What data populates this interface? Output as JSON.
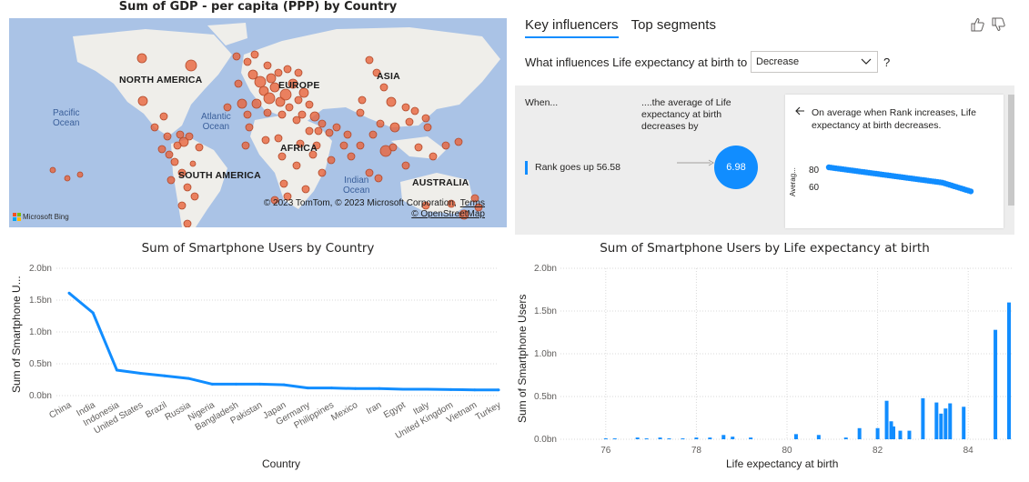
{
  "map": {
    "title": "Sum of GDP - per capita (PPP) by Country",
    "continents": [
      "NORTH AMERICA",
      "EUROPE",
      "ASIA",
      "AFRICA",
      "SOUTH AMERICA",
      "AUSTRALIA"
    ],
    "oceans": [
      "Pacific\nOcean",
      "Atlantic\nOcean",
      "Indian\nOcean"
    ],
    "copyright": "© 2023 TomTom, © 2023 Microsoft Corporation,",
    "terms": "Terms",
    "osm": "© OpenStreetMap",
    "bing": "Microsoft Bing",
    "bubble_color": "#e8643c",
    "ocean_color": "#aac3e6",
    "land_color": "#efeeea"
  },
  "key_influencers": {
    "tabs": [
      "Key influencers",
      "Top segments"
    ],
    "active_tab": 0,
    "question": "What influences Life expectancy at birth to",
    "dropdown_value": "Decrease",
    "qmark": "?",
    "when_label": "When...",
    "avg_heading": "....the average of Life expectancy at birth decreases by",
    "factor_label": "Rank goes up 56.58",
    "bubble_value": "6.98",
    "detail_text": "On average when Rank increases, Life expectancy at birth decreases.",
    "mini_chart_ylabel": "Averag...",
    "mini_chart_ticks": [
      "80",
      "60"
    ],
    "accent": "#118dff",
    "icons": [
      "thumbs-up-icon",
      "thumbs-down-icon",
      "back-arrow-icon",
      "chevron-down-icon"
    ]
  },
  "line_chart": {
    "title": "Sum of Smartphone Users by Country",
    "ylabel": "Sum of Smartphone U...",
    "xlabel": "Country",
    "y_ticks": [
      "2.0bn",
      "1.5bn",
      "1.0bn",
      "0.5bn",
      "0.0bn"
    ]
  },
  "bar_chart": {
    "title": "Sum of Smartphone Users by Life expectancy at birth",
    "ylabel": "Sum of Smartphone Users",
    "xlabel": "Life expectancy at birth",
    "y_ticks": [
      "2.0bn",
      "1.5bn",
      "1.0bn",
      "0.5bn",
      "0.0bn"
    ],
    "x_ticks": [
      "76",
      "78",
      "80",
      "82",
      "84"
    ]
  },
  "chart_data": [
    {
      "type": "line",
      "title": "Sum of Smartphone Users by Country",
      "xlabel": "Country",
      "ylabel": "Sum of Smartphone U...",
      "ylim": [
        0,
        2.0
      ],
      "y_unit": "bn",
      "grid": true,
      "categories": [
        "China",
        "India",
        "Indonesia",
        "United States",
        "Brazil",
        "Russia",
        "Nigeria",
        "Bangladesh",
        "Pakistan",
        "Japan",
        "Germany",
        "Philippines",
        "Mexico",
        "Iran",
        "Egypt",
        "Italy",
        "United Kingdom",
        "Vietnam",
        "Turkey"
      ],
      "values": [
        1.61,
        1.3,
        0.4,
        0.35,
        0.31,
        0.27,
        0.18,
        0.18,
        0.18,
        0.17,
        0.12,
        0.12,
        0.11,
        0.11,
        0.1,
        0.1,
        0.095,
        0.09,
        0.09
      ],
      "color": "#118dff"
    },
    {
      "type": "bar",
      "title": "Sum of Smartphone Users by Life expectancy at birth",
      "xlabel": "Life expectancy at birth",
      "ylabel": "Sum of Smartphone Users",
      "ylim": [
        0,
        2.0
      ],
      "xlim": [
        75,
        85
      ],
      "y_unit": "bn",
      "grid": true,
      "x": [
        76.0,
        76.2,
        76.7,
        76.9,
        77.2,
        77.4,
        77.7,
        78.0,
        78.3,
        78.6,
        78.8,
        79.2,
        80.2,
        80.7,
        81.3,
        81.6,
        82.0,
        82.2,
        82.3,
        82.35,
        82.5,
        82.7,
        83.0,
        83.3,
        83.4,
        83.5,
        83.6,
        83.9,
        84.6,
        84.9
      ],
      "values": [
        0.01,
        0.01,
        0.02,
        0.01,
        0.02,
        0.01,
        0.01,
        0.02,
        0.02,
        0.05,
        0.03,
        0.02,
        0.06,
        0.05,
        0.02,
        0.13,
        0.13,
        0.45,
        0.21,
        0.15,
        0.1,
        0.1,
        0.48,
        0.43,
        0.3,
        0.36,
        0.42,
        0.38,
        1.28,
        1.6
      ],
      "color": "#118dff"
    }
  ]
}
